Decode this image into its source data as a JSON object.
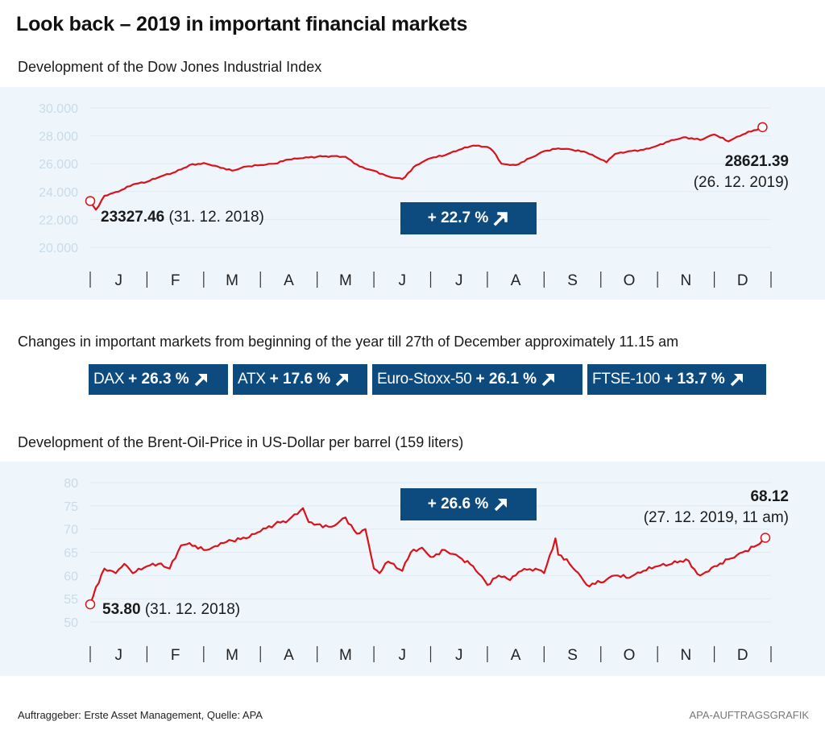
{
  "header": {
    "title": "Look back – 2019 in important financial markets"
  },
  "dow": {
    "subtitle": "Development of the Dow Jones Industrial Index",
    "change_badge": "+ 22.7 %",
    "start_value": "23327.46",
    "start_date": "(31. 12. 2018)",
    "end_value": "28621.39",
    "end_date": "(26. 12. 2019)"
  },
  "markets": {
    "heading": "Changes in important markets from beginning of the year till 27th of December approximately 11.15 am",
    "items": [
      {
        "name": "DAX",
        "change": "+ 26.3 %"
      },
      {
        "name": "ATX",
        "change": "+ 17.6 %"
      },
      {
        "name": "Euro-Stoxx-50",
        "change": "+ 26.1 %"
      },
      {
        "name": "FTSE-100",
        "change": "+ 13.7 %"
      }
    ]
  },
  "oil": {
    "subtitle": "Development of the Brent-Oil-Price in US-Dollar per barrel (159 liters)",
    "change_badge": "+ 26.6 %",
    "start_value": "53.80",
    "start_date": "(31. 12. 2018)",
    "end_value": "68.12",
    "end_date": "(27. 12. 2019, 11 am)"
  },
  "footer": {
    "source": "Auftraggeber: Erste Asset Management, Quelle: APA",
    "credit": "APA-AUFTRAGSGRAFIK"
  },
  "colors": {
    "line": "#d9121b",
    "badge": "#0d4a7e",
    "panel": "#eef6fc",
    "tick_label": "#c8dbe8"
  },
  "chart_data": [
    {
      "type": "line",
      "title": "Development of the Dow Jones Industrial Index",
      "xlabel": "",
      "ylabel": "",
      "ylim": [
        20000,
        30000
      ],
      "yticks": [
        "20.000",
        "22.000",
        "24.000",
        "26.000",
        "28.000",
        "30.000"
      ],
      "ytick_values": [
        20000,
        22000,
        24000,
        26000,
        28000,
        30000
      ],
      "xticks": [
        "J",
        "F",
        "M",
        "A",
        "M",
        "J",
        "J",
        "A",
        "S",
        "O",
        "N",
        "D"
      ],
      "grid": true,
      "x_unit": "month-fraction (0 = 31.12.2018, 12 = end of December)",
      "series": [
        {
          "name": "Dow Jones Industrial",
          "x": [
            0,
            0.1,
            0.25,
            0.5,
            0.75,
            1.0,
            1.25,
            1.5,
            1.75,
            2.0,
            2.25,
            2.5,
            2.75,
            3.0,
            3.25,
            3.5,
            3.75,
            4.0,
            4.25,
            4.5,
            4.75,
            5.0,
            5.25,
            5.5,
            5.75,
            6.0,
            6.25,
            6.5,
            6.75,
            7.0,
            7.1,
            7.25,
            7.5,
            7.75,
            8.0,
            8.25,
            8.5,
            8.75,
            9.0,
            9.1,
            9.25,
            9.5,
            9.75,
            10.0,
            10.25,
            10.5,
            10.75,
            11.0,
            11.25,
            11.5,
            11.85
          ],
          "values": [
            23327,
            22700,
            23700,
            24000,
            24500,
            24700,
            25100,
            25400,
            25900,
            26050,
            25800,
            25500,
            25800,
            25900,
            26000,
            26300,
            26400,
            26500,
            26550,
            26500,
            25800,
            25500,
            25100,
            24900,
            25900,
            26400,
            26600,
            27000,
            27300,
            27200,
            26900,
            26000,
            25900,
            26400,
            26900,
            27100,
            27000,
            26800,
            26300,
            26100,
            26700,
            26900,
            27000,
            27300,
            27700,
            27900,
            27700,
            28100,
            27600,
            28100,
            28621
          ]
        }
      ],
      "annotations": [
        {
          "text": "23327.46 (31. 12. 2018)",
          "at": "start"
        },
        {
          "text": "28621.39 (26. 12. 2019)",
          "at": "end"
        },
        {
          "text": "+ 22.7 %",
          "kind": "change-badge"
        }
      ]
    },
    {
      "type": "line",
      "title": "Development of the Brent-Oil-Price in US-Dollar per barrel (159 liters)",
      "xlabel": "",
      "ylabel": "",
      "ylim": [
        50,
        80
      ],
      "yticks": [
        "50",
        "55",
        "60",
        "65",
        "70",
        "75",
        "80"
      ],
      "ytick_values": [
        50,
        55,
        60,
        65,
        70,
        75,
        80
      ],
      "xticks": [
        "J",
        "F",
        "M",
        "A",
        "M",
        "J",
        "J",
        "A",
        "S",
        "O",
        "N",
        "D"
      ],
      "grid": true,
      "x_unit": "month-fraction (0 = 31.12.2018, 12 = end of December)",
      "series": [
        {
          "name": "Brent Oil (USD/barrel)",
          "x": [
            0,
            0.1,
            0.25,
            0.45,
            0.6,
            0.75,
            1.0,
            1.2,
            1.4,
            1.6,
            1.75,
            2.0,
            2.15,
            2.3,
            2.5,
            2.75,
            3.0,
            3.25,
            3.5,
            3.75,
            3.85,
            4.0,
            4.25,
            4.5,
            4.7,
            4.85,
            5.0,
            5.1,
            5.25,
            5.5,
            5.65,
            5.85,
            6.0,
            6.25,
            6.5,
            6.75,
            7.0,
            7.2,
            7.4,
            7.6,
            7.85,
            8.0,
            8.2,
            8.25,
            8.4,
            8.75,
            9.0,
            9.25,
            9.5,
            9.75,
            10.0,
            10.25,
            10.5,
            10.75,
            11.0,
            11.25,
            11.5,
            11.75,
            11.9
          ],
          "values": [
            53.8,
            57.5,
            61.5,
            60.5,
            62.5,
            60.5,
            62.0,
            62.5,
            61.5,
            66.5,
            67.0,
            65.5,
            66.0,
            67.0,
            67.5,
            68.0,
            69.5,
            71.0,
            72.0,
            74.5,
            71.5,
            71.0,
            70.5,
            72.5,
            69.0,
            70.0,
            61.5,
            60.5,
            63.0,
            61.0,
            65.0,
            66.0,
            64.0,
            65.5,
            64.0,
            62.0,
            58.0,
            60.0,
            59.0,
            61.0,
            61.5,
            60.5,
            68.0,
            64.5,
            63.5,
            58.0,
            58.5,
            60.0,
            59.5,
            61.0,
            62.0,
            62.5,
            63.5,
            60.0,
            62.0,
            63.5,
            65.0,
            66.5,
            68.12
          ]
        }
      ],
      "annotations": [
        {
          "text": "53.80 (31. 12. 2018)",
          "at": "start"
        },
        {
          "text": "68.12 (27. 12. 2019, 11 am)",
          "at": "end"
        },
        {
          "text": "+ 26.6 %",
          "kind": "change-badge"
        }
      ]
    }
  ]
}
